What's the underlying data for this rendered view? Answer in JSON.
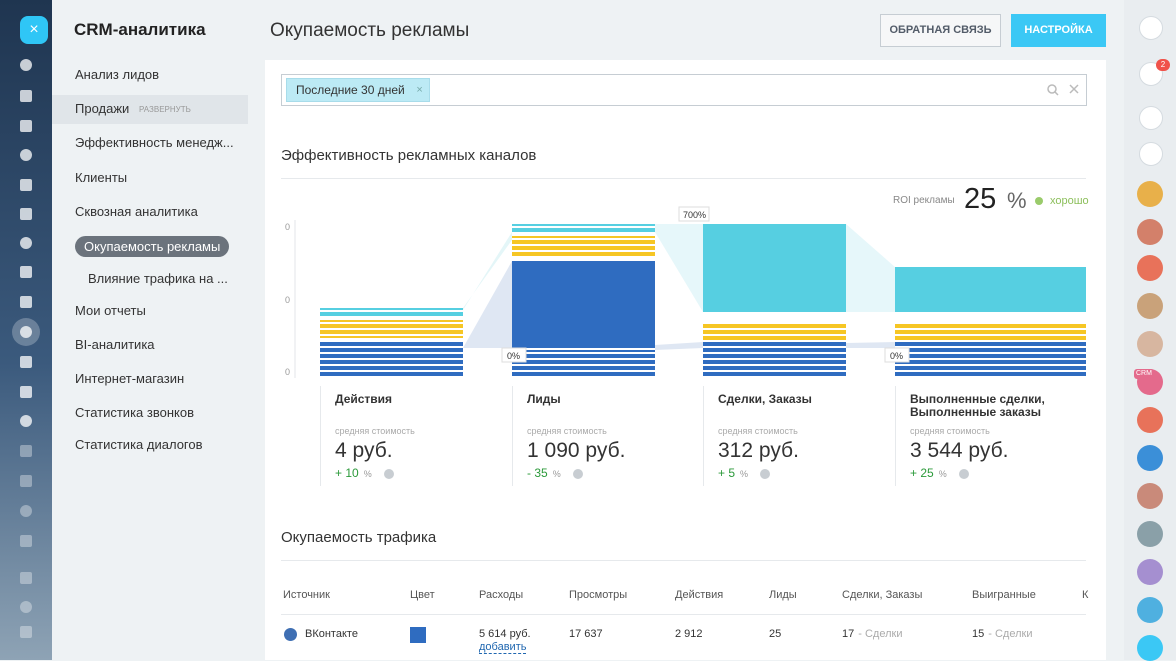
{
  "sidebar": {
    "title": "CRM-аналитика",
    "expand_label": "РАЗВЕРНУТЬ",
    "items": [
      "Анализ лидов",
      "Продажи",
      "Эффективность менедж...",
      "Клиенты",
      "Сквозная аналитика",
      "Окупаемость рекламы",
      "Влияние трафика на ...",
      "Мои отчеты",
      "BI-аналитика",
      "Интернет-магазин",
      "Статистика звонков",
      "Статистика диалогов"
    ]
  },
  "header": {
    "title": "Окупаемость рекламы",
    "buttons": [
      "ОБРАТНАЯ СВЯЗЬ",
      "НАСТРОЙКА"
    ]
  },
  "filter": {
    "tag": "Последние 30 дней"
  },
  "channels": {
    "title": "Эффективность рекламных каналов",
    "roi_label": "ROI рекламы",
    "roi_value": "25",
    "roi_unit": "%",
    "roi_status": "хорошо",
    "axis_labels": [
      "0",
      "0",
      "0"
    ],
    "conversion_labels": [
      "0%",
      "700%",
      "0%"
    ],
    "stages": [
      {
        "name": "Действия",
        "cost_label": "средняя стоимость",
        "cost": "4 руб.",
        "change": "+ 10",
        "change_unit": "%"
      },
      {
        "name": "Лиды",
        "cost_label": "средняя стоимость",
        "cost": "1 090 руб.",
        "change": "- 35",
        "change_unit": "%"
      },
      {
        "name": "Сделки, Заказы",
        "cost_label": "средняя стоимость",
        "cost": "312 руб.",
        "change": "+ 5",
        "change_unit": "%"
      },
      {
        "name": "Выполненные сделки, Выполненные заказы",
        "cost_label": "средняя стоимость",
        "cost": "3 544 руб.",
        "change": "+ 25",
        "change_unit": "%"
      }
    ]
  },
  "traffic": {
    "title": "Окупаемость трафика",
    "columns": [
      "Источник",
      "Цвет",
      "Расходы",
      "Просмотры",
      "Действия",
      "Лиды",
      "Сделки, Заказы",
      "Выигранные",
      "К"
    ],
    "rows": [
      {
        "source": "ВКонтакте",
        "spend": "5 614 руб.",
        "spend_action": "добавить",
        "views": "17 637",
        "actions": "2 912",
        "leads": "25",
        "deals": "17",
        "deals_label": "- Сделки",
        "won": "15",
        "won_label": "- Сделки"
      }
    ]
  },
  "right_bar": {
    "notification_count": "2",
    "crm_badge": "CRM"
  }
}
